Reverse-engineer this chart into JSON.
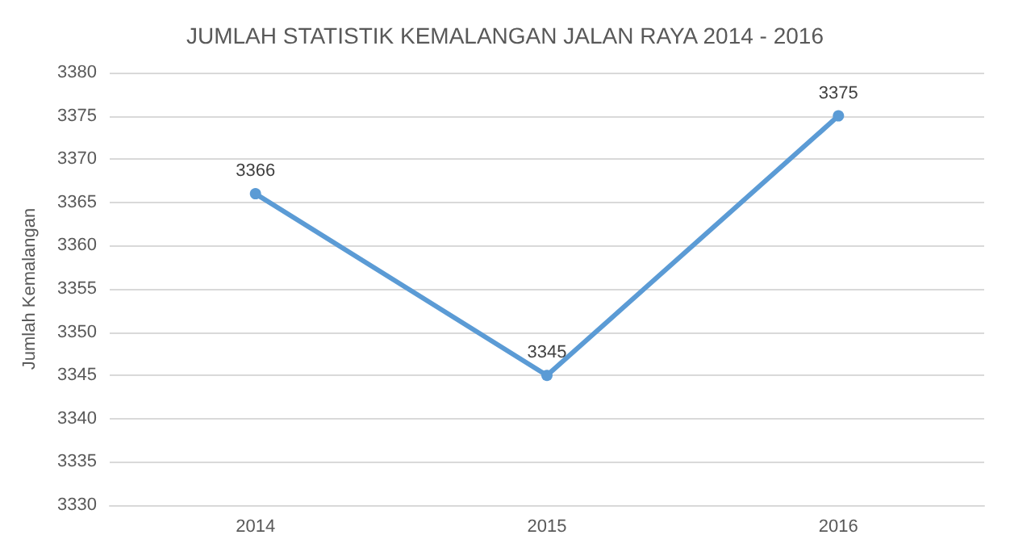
{
  "chart_data": {
    "type": "line",
    "title": "JUMLAH STATISTIK KEMALANGAN JALAN RAYA 2014 - 2016",
    "ylabel": "Jumlah Kemalangan",
    "categories": [
      "2014",
      "2015",
      "2016"
    ],
    "series": [
      {
        "color": "#5b9bd5",
        "values": [
          3366,
          3345,
          3375
        ]
      }
    ],
    "ylim": [
      3330,
      3380
    ],
    "yticks": [
      3330,
      3335,
      3340,
      3345,
      3350,
      3355,
      3360,
      3365,
      3370,
      3375,
      3380
    ],
    "grid": "y",
    "marker": "circle",
    "line_style": "solid",
    "data_labels": true
  }
}
